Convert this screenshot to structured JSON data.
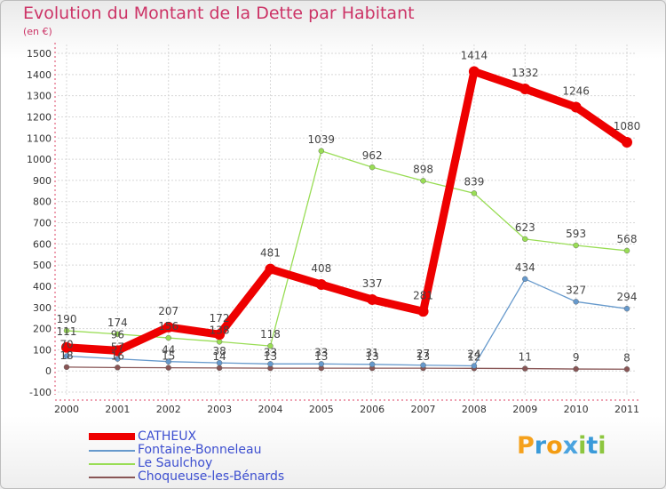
{
  "title": "Evolution du Montant de la Dette par Habitant",
  "subtitle": "(en €)",
  "logo_text": "Proxiti",
  "chart_data": {
    "type": "line",
    "x": [
      "2000",
      "2001",
      "2002",
      "2003",
      "2004",
      "2005",
      "2006",
      "2007",
      "2008",
      "2009",
      "2010",
      "2011"
    ],
    "ylim": [
      -100,
      1500
    ],
    "yticks": [
      "-100",
      "0",
      "100",
      "200",
      "300",
      "400",
      "500",
      "600",
      "700",
      "800",
      "900",
      "1000",
      "1100",
      "1200",
      "1300",
      "1400",
      "1500"
    ],
    "series": [
      {
        "name": "CATHEUX",
        "color": "#ee0000",
        "values": [
          111,
          96,
          207,
          172,
          481,
          408,
          337,
          281,
          1414,
          1332,
          1246,
          1080
        ],
        "labels": [
          "111",
          "96",
          "207",
          "172",
          "481",
          "408",
          "337",
          "281",
          "1414",
          "1332",
          "1246",
          "1080"
        ]
      },
      {
        "name": "Fontaine-Bonneleau",
        "color": "#6699cc",
        "values": [
          70,
          57,
          44,
          38,
          33,
          33,
          31,
          27,
          24,
          434,
          327,
          294
        ],
        "labels": [
          "70",
          "57",
          "44",
          "38",
          "33",
          "33",
          "31",
          "27",
          "24",
          "434",
          "327",
          "294"
        ]
      },
      {
        "name": "Le Saulchoy",
        "color": "#99dd55",
        "values": [
          190,
          174,
          156,
          138,
          118,
          1039,
          962,
          898,
          839,
          623,
          593,
          568
        ],
        "labels": [
          "190",
          "174",
          "156",
          "138",
          "118",
          "1039",
          "962",
          "898",
          "839",
          "623",
          "593",
          "568"
        ]
      },
      {
        "name": "Choqueuse-les-Bénards",
        "color": "#885555",
        "values": [
          18,
          16,
          15,
          14,
          13,
          13,
          13,
          13,
          12,
          11,
          9,
          8
        ],
        "labels": [
          "18",
          "16",
          "15",
          "14",
          "13",
          "13",
          "13",
          "13",
          "12",
          "11",
          "9",
          "8"
        ]
      }
    ]
  }
}
